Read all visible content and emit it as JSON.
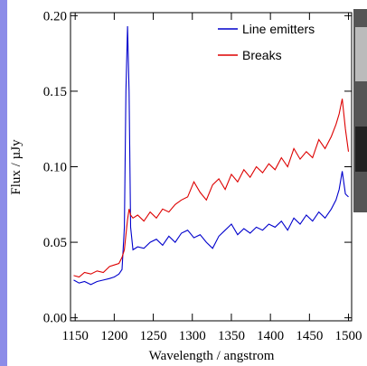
{
  "chart_data": {
    "type": "line",
    "xlabel": "Wavelength / angstrom",
    "ylabel": "Flux / µJy",
    "xlim": [
      1144,
      1504
    ],
    "ylim": [
      -0.002,
      0.202
    ],
    "xticks": [
      1150,
      1200,
      1250,
      1300,
      1350,
      1400,
      1450,
      1500
    ],
    "yticks": [
      {
        "value": 0,
        "label": "0.00"
      },
      0.05,
      {
        "value": 0.1,
        "label": "0.10"
      },
      0.15,
      {
        "value": 0.2,
        "label": "0.20"
      }
    ],
    "legend": "upper right",
    "x": [
      1148,
      1155,
      1162,
      1170,
      1178,
      1186,
      1194,
      1200,
      1206,
      1210,
      1213,
      1215,
      1217,
      1219,
      1221,
      1224,
      1230,
      1238,
      1246,
      1254,
      1262,
      1270,
      1278,
      1286,
      1294,
      1302,
      1310,
      1318,
      1326,
      1334,
      1342,
      1350,
      1358,
      1366,
      1374,
      1382,
      1390,
      1398,
      1406,
      1414,
      1422,
      1430,
      1438,
      1446,
      1454,
      1462,
      1470,
      1478,
      1484,
      1488,
      1492,
      1496,
      1500
    ],
    "series": [
      {
        "name": "Line emitters",
        "color": "#0000cc",
        "values": [
          0.025,
          0.023,
          0.024,
          0.022,
          0.024,
          0.025,
          0.026,
          0.027,
          0.029,
          0.032,
          0.06,
          0.15,
          0.193,
          0.15,
          0.06,
          0.045,
          0.047,
          0.046,
          0.05,
          0.052,
          0.048,
          0.054,
          0.05,
          0.056,
          0.058,
          0.053,
          0.055,
          0.05,
          0.046,
          0.054,
          0.058,
          0.062,
          0.055,
          0.059,
          0.056,
          0.06,
          0.058,
          0.062,
          0.06,
          0.064,
          0.058,
          0.066,
          0.062,
          0.068,
          0.064,
          0.07,
          0.066,
          0.072,
          0.078,
          0.085,
          0.097,
          0.082,
          0.08
        ]
      },
      {
        "name": "Breaks",
        "color": "#dd0000",
        "values": [
          0.028,
          0.027,
          0.03,
          0.029,
          0.031,
          0.03,
          0.034,
          0.035,
          0.036,
          0.04,
          0.045,
          0.055,
          0.065,
          0.072,
          0.068,
          0.066,
          0.068,
          0.064,
          0.07,
          0.066,
          0.072,
          0.07,
          0.075,
          0.078,
          0.08,
          0.09,
          0.083,
          0.078,
          0.088,
          0.092,
          0.085,
          0.095,
          0.09,
          0.098,
          0.093,
          0.1,
          0.096,
          0.102,
          0.098,
          0.106,
          0.1,
          0.112,
          0.105,
          0.11,
          0.106,
          0.118,
          0.112,
          0.12,
          0.128,
          0.135,
          0.145,
          0.125,
          0.11
        ]
      }
    ]
  }
}
